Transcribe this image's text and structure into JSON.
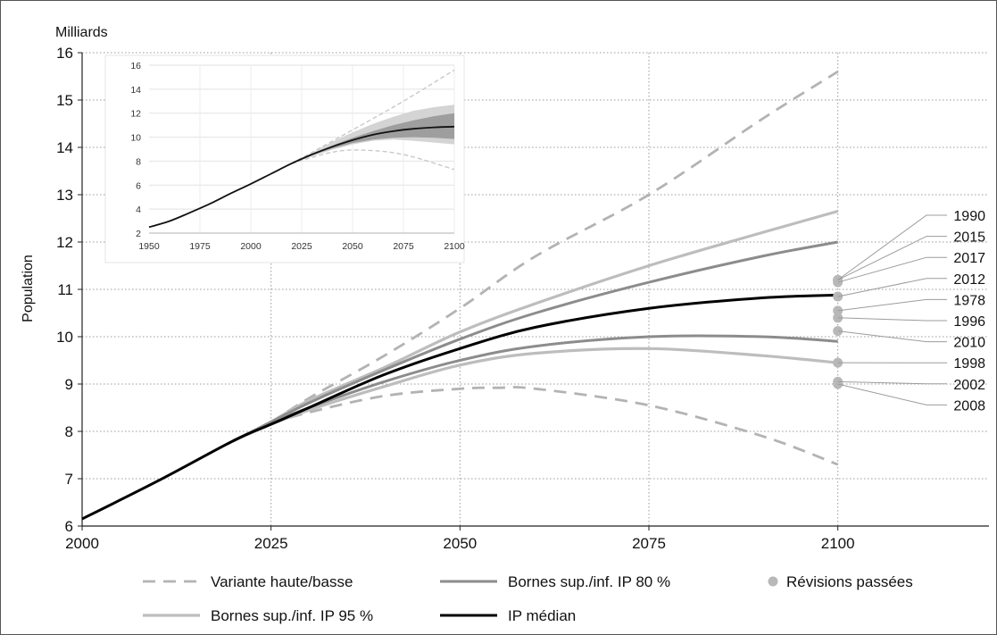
{
  "chart_data": [
    {
      "type": "line",
      "xlabel": "",
      "ylabel": "Population",
      "unit_label": "Milliards",
      "xlim": [
        2000,
        2120
      ],
      "ylim": [
        6,
        16
      ],
      "xticks": [
        2000,
        2025,
        2050,
        2075,
        2100
      ],
      "yticks": [
        6,
        7,
        8,
        9,
        10,
        11,
        12,
        13,
        14,
        15,
        16
      ],
      "grid": true,
      "legend_position": "bottom",
      "colors": {
        "variant": "#b3b3b3",
        "ip80": "#8c8c8c",
        "ip95": "#bdbdbd",
        "median": "#000000",
        "revisions": "#b8b8b8"
      },
      "series": [
        {
          "name": "Variante haute/basse",
          "style": "dashed",
          "kind": "high",
          "x": [
            2020,
            2025,
            2030,
            2040,
            2050,
            2060,
            2075,
            2090,
            2100
          ],
          "y": [
            7.8,
            8.2,
            8.7,
            9.6,
            10.6,
            11.7,
            13.0,
            14.6,
            15.6
          ]
        },
        {
          "name": "Variante haute/basse",
          "style": "dashed",
          "kind": "low",
          "x": [
            2020,
            2025,
            2030,
            2040,
            2050,
            2055,
            2060,
            2075,
            2090,
            2100
          ],
          "y": [
            7.8,
            8.15,
            8.4,
            8.75,
            8.9,
            8.92,
            8.9,
            8.55,
            7.9,
            7.3
          ]
        },
        {
          "name": "Bornes sup./inf. IP 95 %",
          "style": "solid",
          "kind": "ip95-upper",
          "x": [
            2020,
            2025,
            2030,
            2040,
            2050,
            2060,
            2075,
            2090,
            2100
          ],
          "y": [
            7.8,
            8.2,
            8.65,
            9.35,
            10.1,
            10.7,
            11.5,
            12.2,
            12.65
          ]
        },
        {
          "name": "Bornes sup./inf. IP 95 %",
          "style": "solid",
          "kind": "ip95-lower",
          "x": [
            2020,
            2025,
            2030,
            2040,
            2050,
            2060,
            2075,
            2090,
            2100
          ],
          "y": [
            7.8,
            8.15,
            8.45,
            8.95,
            9.4,
            9.65,
            9.75,
            9.6,
            9.45
          ]
        },
        {
          "name": "Bornes sup./inf. IP 80 %",
          "style": "solid",
          "kind": "ip80-upper",
          "x": [
            2020,
            2025,
            2030,
            2040,
            2050,
            2060,
            2075,
            2090,
            2100
          ],
          "y": [
            7.8,
            8.2,
            8.6,
            9.3,
            9.95,
            10.5,
            11.15,
            11.7,
            12.0
          ]
        },
        {
          "name": "Bornes sup./inf. IP 80 %",
          "style": "solid",
          "kind": "ip80-lower",
          "x": [
            2020,
            2025,
            2030,
            2040,
            2050,
            2060,
            2075,
            2090,
            2100
          ],
          "y": [
            7.8,
            8.18,
            8.5,
            9.05,
            9.5,
            9.8,
            10.0,
            10.0,
            9.9
          ]
        },
        {
          "name": "IP médian",
          "style": "solid",
          "kind": "median",
          "x": [
            2000,
            2010,
            2020,
            2025,
            2030,
            2040,
            2050,
            2060,
            2075,
            2090,
            2100
          ],
          "y": [
            6.15,
            6.95,
            7.8,
            8.15,
            8.5,
            9.2,
            9.75,
            10.2,
            10.6,
            10.82,
            10.88
          ]
        }
      ],
      "revisions": [
        {
          "label": "1990",
          "value": 11.2
        },
        {
          "label": "2015",
          "value": 11.2
        },
        {
          "label": "2017",
          "value": 11.15
        },
        {
          "label": "2012",
          "value": 10.85
        },
        {
          "label": "1978",
          "value": 10.55
        },
        {
          "label": "1996",
          "value": 10.4
        },
        {
          "label": "2010",
          "value": 10.12
        },
        {
          "label": "1998",
          "value": 9.45
        },
        {
          "label": "2002",
          "value": 9.05
        },
        {
          "label": "2008",
          "value": 9.0
        }
      ],
      "legend": [
        {
          "label": "Variante haute/basse",
          "kind": "variant"
        },
        {
          "label": "Bornes sup./inf. IP 80 %",
          "kind": "ip80"
        },
        {
          "label": "Révisions passées",
          "kind": "revisions"
        },
        {
          "label": "Bornes sup./inf. IP 95 %",
          "kind": "ip95"
        },
        {
          "label": "IP médian",
          "kind": "median"
        }
      ]
    },
    {
      "type": "area",
      "xlabel": "",
      "ylabel": "",
      "xlim": [
        1950,
        2100
      ],
      "ylim": [
        2,
        16
      ],
      "xticks": [
        1950,
        1975,
        2000,
        2025,
        2050,
        2075,
        2100
      ],
      "yticks": [
        2,
        4,
        6,
        8,
        10,
        12,
        14,
        16
      ],
      "grid": true,
      "median": {
        "x": [
          1950,
          1960,
          1970,
          1980,
          1990,
          2000,
          2010,
          2020,
          2030,
          2040,
          2050,
          2060,
          2070,
          2080,
          2090,
          2100
        ],
        "y": [
          2.5,
          3.0,
          3.7,
          4.45,
          5.3,
          6.1,
          6.95,
          7.8,
          8.55,
          9.2,
          9.75,
          10.2,
          10.5,
          10.7,
          10.82,
          10.88
        ]
      },
      "band95": {
        "x": [
          2020,
          2030,
          2040,
          2050,
          2060,
          2070,
          2080,
          2090,
          2100
        ],
        "upper": [
          7.8,
          8.7,
          9.6,
          10.4,
          11.1,
          11.7,
          12.2,
          12.5,
          12.7
        ],
        "lower": [
          7.8,
          8.4,
          8.95,
          9.4,
          9.7,
          9.8,
          9.7,
          9.55,
          9.4
        ]
      },
      "band80": {
        "x": [
          2020,
          2030,
          2040,
          2050,
          2060,
          2070,
          2080,
          2090,
          2100
        ],
        "upper": [
          7.8,
          8.6,
          9.3,
          9.95,
          10.5,
          11.0,
          11.4,
          11.75,
          12.0
        ],
        "lower": [
          7.8,
          8.5,
          9.05,
          9.5,
          9.8,
          9.95,
          10.0,
          9.95,
          9.85
        ]
      },
      "high_variant": {
        "x": [
          2020,
          2050,
          2075,
          2100
        ],
        "y": [
          7.8,
          10.6,
          13.0,
          15.6
        ]
      },
      "low_variant": {
        "x": [
          2020,
          2040,
          2055,
          2075,
          2100
        ],
        "y": [
          7.8,
          8.75,
          8.92,
          8.55,
          7.3
        ]
      }
    }
  ]
}
